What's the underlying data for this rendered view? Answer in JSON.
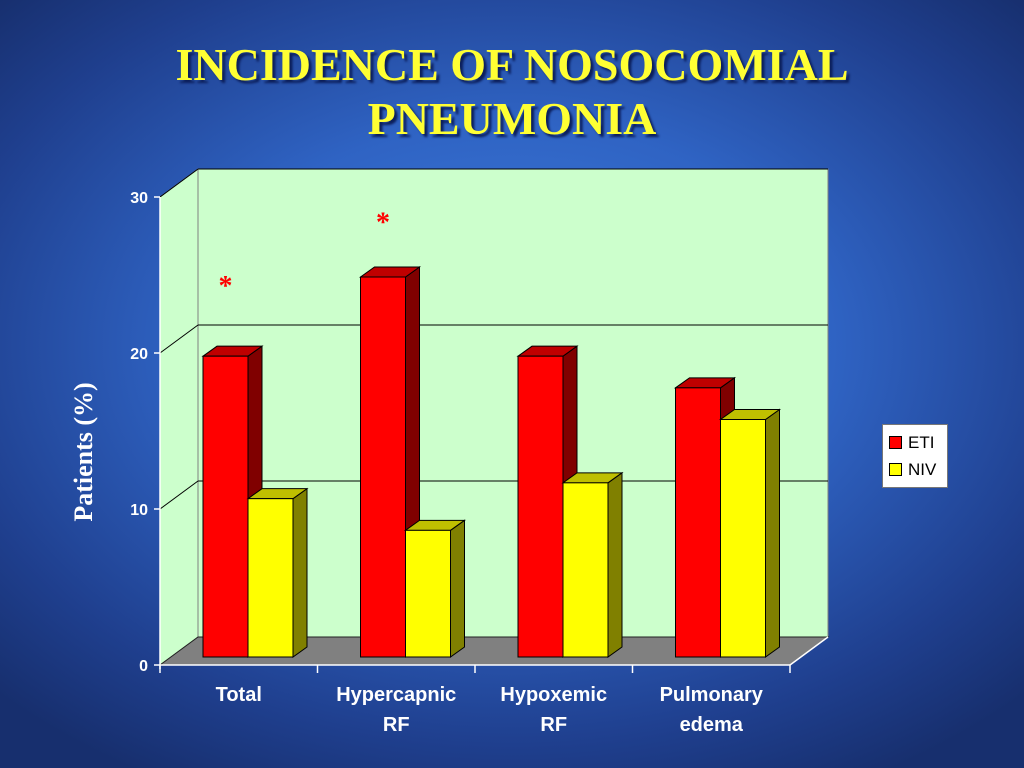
{
  "title_lines": [
    "INCIDENCE OF NOSOCOMIAL",
    "PNEUMONIA"
  ],
  "chart_data": {
    "type": "bar",
    "style": "3d-clustered-column",
    "categories": [
      [
        "Total"
      ],
      [
        "Hypercapnic",
        "RF"
      ],
      [
        "Hypoxemic",
        "RF"
      ],
      [
        "Pulmonary",
        "edema"
      ]
    ],
    "series": [
      {
        "name": "ETI",
        "values": [
          19,
          24,
          19,
          17
        ],
        "color": "#ff0000"
      },
      {
        "name": "NIV",
        "values": [
          10,
          8,
          11,
          15
        ],
        "color": "#ffff00"
      }
    ],
    "ylabel": "Patients (%)",
    "ylim": [
      0,
      30
    ],
    "yticks": [
      0,
      10,
      20,
      30
    ],
    "grid": true,
    "legend_position": "right",
    "annotations": [
      {
        "text": "*",
        "category_index": 0,
        "y": 24
      },
      {
        "text": "*",
        "category_index": 1,
        "y": 28
      }
    ],
    "colors": {
      "wall": "#ccffcc",
      "floor": "#808080",
      "asterisk": "#ff0000",
      "axis_text": "#ffffff"
    }
  }
}
